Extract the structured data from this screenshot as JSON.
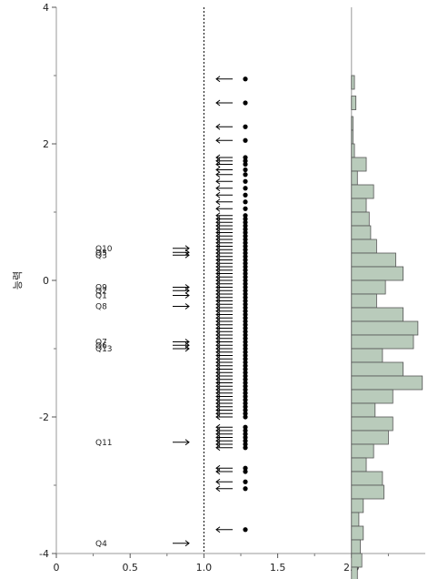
{
  "chart_data": {
    "type": "scatter",
    "ylabel": "능력",
    "xlim": [
      0,
      2.5
    ],
    "ylim": [
      -4,
      4
    ],
    "x_ticks": [
      "0",
      "0.5",
      "1.0",
      "1.5",
      "2.0"
    ],
    "y_ticks": [
      "4",
      "2",
      "0",
      "-2",
      "-4"
    ],
    "reference_lines": {
      "dotted_x": 1.0,
      "solid_x": 2.0
    },
    "items": [
      {
        "label": "Q10",
        "y": 0.47
      },
      {
        "label": "Q5",
        "y": 0.41
      },
      {
        "label": "Q3",
        "y": 0.37
      },
      {
        "label": "Q9",
        "y": -0.1
      },
      {
        "label": "Q2",
        "y": -0.15
      },
      {
        "label": "Q1",
        "y": -0.22
      },
      {
        "label": "Q8",
        "y": -0.38
      },
      {
        "label": "Q7",
        "y": -0.9
      },
      {
        "label": "Q6",
        "y": -0.95
      },
      {
        "label": "Q13",
        "y": -1.0
      },
      {
        "label": "Q11",
        "y": -2.37
      },
      {
        "label": "Q4",
        "y": -3.85
      }
    ],
    "person_points": [
      2.95,
      2.6,
      2.25,
      2.05,
      1.8,
      1.75,
      1.7,
      1.62,
      1.55,
      1.45,
      1.35,
      1.25,
      1.15,
      1.05,
      0.95,
      0.9,
      0.85,
      0.8,
      0.75,
      0.7,
      0.65,
      0.6,
      0.55,
      0.5,
      0.45,
      0.4,
      0.35,
      0.3,
      0.25,
      0.2,
      0.15,
      0.1,
      0.05,
      0.0,
      -0.05,
      -0.1,
      -0.15,
      -0.2,
      -0.25,
      -0.3,
      -0.35,
      -0.4,
      -0.45,
      -0.5,
      -0.55,
      -0.6,
      -0.65,
      -0.7,
      -0.75,
      -0.8,
      -0.85,
      -0.9,
      -0.95,
      -1.0,
      -1.05,
      -1.1,
      -1.15,
      -1.2,
      -1.25,
      -1.3,
      -1.35,
      -1.4,
      -1.45,
      -1.5,
      -1.55,
      -1.6,
      -1.65,
      -1.7,
      -1.75,
      -1.8,
      -1.85,
      -1.9,
      -1.95,
      -2.0,
      -2.15,
      -2.2,
      -2.25,
      -2.3,
      -2.35,
      -2.4,
      -2.45,
      -2.75,
      -2.8,
      -2.95,
      -3.05,
      -3.65
    ],
    "histogram": {
      "bin_width": 0.2,
      "bins": [
        {
          "y": 2.9,
          "w": 0.02
        },
        {
          "y": 2.6,
          "w": 0.03
        },
        {
          "y": 2.3,
          "w": 0.01
        },
        {
          "y": 2.1,
          "w": 0.01
        },
        {
          "y": 1.9,
          "w": 0.02
        },
        {
          "y": 1.7,
          "w": 0.1
        },
        {
          "y": 1.5,
          "w": 0.04
        },
        {
          "y": 1.3,
          "w": 0.15
        },
        {
          "y": 1.1,
          "w": 0.1
        },
        {
          "y": 0.9,
          "w": 0.12
        },
        {
          "y": 0.7,
          "w": 0.13
        },
        {
          "y": 0.5,
          "w": 0.17
        },
        {
          "y": 0.3,
          "w": 0.3
        },
        {
          "y": 0.1,
          "w": 0.35
        },
        {
          "y": -0.1,
          "w": 0.23
        },
        {
          "y": -0.3,
          "w": 0.17
        },
        {
          "y": -0.5,
          "w": 0.35
        },
        {
          "y": -0.7,
          "w": 0.45
        },
        {
          "y": -0.9,
          "w": 0.42
        },
        {
          "y": -1.1,
          "w": 0.21
        },
        {
          "y": -1.3,
          "w": 0.35
        },
        {
          "y": -1.5,
          "w": 0.48
        },
        {
          "y": -1.7,
          "w": 0.28
        },
        {
          "y": -1.9,
          "w": 0.16
        },
        {
          "y": -2.1,
          "w": 0.28
        },
        {
          "y": -2.3,
          "w": 0.25
        },
        {
          "y": -2.5,
          "w": 0.15
        },
        {
          "y": -2.7,
          "w": 0.1
        },
        {
          "y": -2.9,
          "w": 0.21
        },
        {
          "y": -3.1,
          "w": 0.22
        },
        {
          "y": -3.3,
          "w": 0.08
        },
        {
          "y": -3.5,
          "w": 0.05
        },
        {
          "y": -3.7,
          "w": 0.08
        },
        {
          "y": -3.9,
          "w": 0.06
        },
        {
          "y": -4.1,
          "w": 0.07
        },
        {
          "y": -4.3,
          "w": 0.04
        }
      ]
    },
    "colors": {
      "histogram_fill": "#b9cbbb",
      "histogram_stroke": "#555555",
      "points": "#000000"
    }
  }
}
